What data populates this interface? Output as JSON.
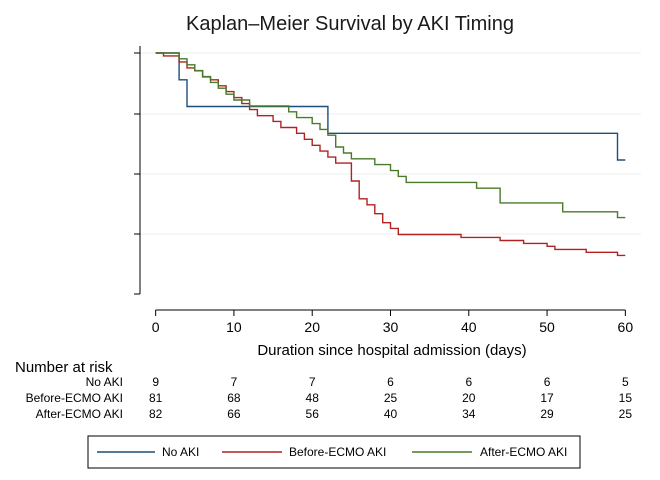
{
  "chart_data": {
    "type": "line",
    "title": "Kaplan–Meier Survival by AKI Timing",
    "xlabel": "Duration since hospital admission (days)",
    "ylabel": "",
    "xlim": [
      -2,
      62
    ],
    "ylim": [
      0.0,
      1.0
    ],
    "x_ticks": [
      0,
      10,
      20,
      30,
      40,
      50,
      60
    ],
    "y_ticks": [
      0.0,
      0.25,
      0.5,
      0.75,
      1.0
    ],
    "grid": true,
    "legend_position": "bottom",
    "series": [
      {
        "name": "No AKI",
        "color": "#1f4e79",
        "points": [
          [
            0,
            1.0
          ],
          [
            3,
            1.0
          ],
          [
            3,
            0.889
          ],
          [
            4,
            0.889
          ],
          [
            4,
            0.778
          ],
          [
            22,
            0.778
          ],
          [
            22,
            0.667
          ],
          [
            59,
            0.667
          ],
          [
            59,
            0.556
          ],
          [
            60,
            0.556
          ]
        ]
      },
      {
        "name": "Before-ECMO AKI",
        "color": "#b22222",
        "points": [
          [
            0,
            1.0
          ],
          [
            1,
            1.0
          ],
          [
            1,
            0.988
          ],
          [
            3,
            0.988
          ],
          [
            3,
            0.963
          ],
          [
            4,
            0.963
          ],
          [
            4,
            0.938
          ],
          [
            5,
            0.938
          ],
          [
            5,
            0.926
          ],
          [
            6,
            0.926
          ],
          [
            6,
            0.901
          ],
          [
            7,
            0.901
          ],
          [
            7,
            0.889
          ],
          [
            8,
            0.889
          ],
          [
            8,
            0.864
          ],
          [
            9,
            0.864
          ],
          [
            9,
            0.84
          ],
          [
            10,
            0.84
          ],
          [
            10,
            0.815
          ],
          [
            11,
            0.815
          ],
          [
            11,
            0.79
          ],
          [
            12,
            0.79
          ],
          [
            12,
            0.765
          ],
          [
            13,
            0.765
          ],
          [
            13,
            0.74
          ],
          [
            15,
            0.74
          ],
          [
            15,
            0.716
          ],
          [
            16,
            0.716
          ],
          [
            16,
            0.691
          ],
          [
            18,
            0.691
          ],
          [
            18,
            0.667
          ],
          [
            19,
            0.667
          ],
          [
            19,
            0.642
          ],
          [
            20,
            0.642
          ],
          [
            20,
            0.617
          ],
          [
            21,
            0.617
          ],
          [
            21,
            0.593
          ],
          [
            22,
            0.593
          ],
          [
            22,
            0.568
          ],
          [
            23,
            0.568
          ],
          [
            23,
            0.543
          ],
          [
            25,
            0.543
          ],
          [
            25,
            0.469
          ],
          [
            26,
            0.469
          ],
          [
            26,
            0.395
          ],
          [
            27,
            0.395
          ],
          [
            27,
            0.37
          ],
          [
            28,
            0.37
          ],
          [
            28,
            0.333
          ],
          [
            29,
            0.333
          ],
          [
            29,
            0.296
          ],
          [
            30,
            0.296
          ],
          [
            30,
            0.272
          ],
          [
            31,
            0.272
          ],
          [
            31,
            0.247
          ],
          [
            39,
            0.247
          ],
          [
            39,
            0.235
          ],
          [
            44,
            0.235
          ],
          [
            44,
            0.222
          ],
          [
            47,
            0.222
          ],
          [
            47,
            0.21
          ],
          [
            50,
            0.21
          ],
          [
            50,
            0.198
          ],
          [
            51,
            0.198
          ],
          [
            51,
            0.185
          ],
          [
            55,
            0.185
          ],
          [
            55,
            0.173
          ],
          [
            59,
            0.173
          ],
          [
            59,
            0.16
          ],
          [
            60,
            0.16
          ]
        ]
      },
      {
        "name": "After-ECMO AKI",
        "color": "#4a7a2a",
        "points": [
          [
            0,
            1.0
          ],
          [
            3,
            1.0
          ],
          [
            3,
            0.976
          ],
          [
            4,
            0.976
          ],
          [
            4,
            0.951
          ],
          [
            5,
            0.951
          ],
          [
            5,
            0.927
          ],
          [
            6,
            0.927
          ],
          [
            6,
            0.902
          ],
          [
            7,
            0.902
          ],
          [
            7,
            0.878
          ],
          [
            8,
            0.878
          ],
          [
            8,
            0.854
          ],
          [
            9,
            0.854
          ],
          [
            9,
            0.829
          ],
          [
            10,
            0.829
          ],
          [
            10,
            0.805
          ],
          [
            12,
            0.805
          ],
          [
            12,
            0.78
          ],
          [
            17,
            0.78
          ],
          [
            17,
            0.756
          ],
          [
            18,
            0.756
          ],
          [
            18,
            0.732
          ],
          [
            20,
            0.732
          ],
          [
            20,
            0.707
          ],
          [
            21,
            0.707
          ],
          [
            21,
            0.683
          ],
          [
            22,
            0.683
          ],
          [
            22,
            0.659
          ],
          [
            23,
            0.659
          ],
          [
            23,
            0.61
          ],
          [
            24,
            0.61
          ],
          [
            24,
            0.585
          ],
          [
            25,
            0.585
          ],
          [
            25,
            0.561
          ],
          [
            28,
            0.561
          ],
          [
            28,
            0.537
          ],
          [
            30,
            0.537
          ],
          [
            30,
            0.512
          ],
          [
            31,
            0.512
          ],
          [
            31,
            0.488
          ],
          [
            32,
            0.488
          ],
          [
            32,
            0.463
          ],
          [
            41,
            0.463
          ],
          [
            41,
            0.439
          ],
          [
            44,
            0.439
          ],
          [
            44,
            0.378
          ],
          [
            52,
            0.378
          ],
          [
            52,
            0.341
          ],
          [
            59,
            0.341
          ],
          [
            59,
            0.317
          ],
          [
            60,
            0.317
          ]
        ]
      }
    ],
    "risk_table": {
      "title": "Number at risk",
      "times": [
        0,
        10,
        20,
        30,
        40,
        50,
        60
      ],
      "rows": [
        {
          "label": "No AKI",
          "values": [
            9,
            7,
            7,
            6,
            6,
            6,
            5
          ]
        },
        {
          "label": "Before-ECMO AKI",
          "values": [
            81,
            68,
            48,
            25,
            20,
            17,
            15
          ]
        },
        {
          "label": "After-ECMO AKI",
          "values": [
            82,
            66,
            56,
            40,
            34,
            29,
            25
          ]
        }
      ]
    }
  }
}
